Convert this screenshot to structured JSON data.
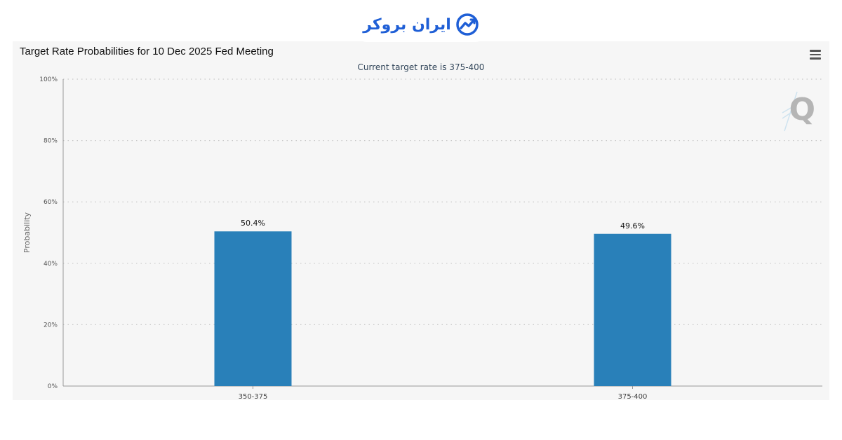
{
  "brand": {
    "name": "ایران بروکر"
  },
  "toolbar": {
    "menu_icon": "hamburger-menu-icon"
  },
  "watermark": {
    "letter": "Q"
  },
  "chart_data": {
    "type": "bar",
    "title": "Target Rate Probabilities for 10 Dec 2025 Fed Meeting",
    "subtitle": "Current target rate is 375-400",
    "ylabel": "Probability",
    "xlabel": "",
    "categories": [
      "350-375",
      "375-400"
    ],
    "values": [
      50.4,
      49.6
    ],
    "data_labels": [
      "50.4%",
      "49.6%"
    ],
    "ylim": [
      0,
      100
    ],
    "yticks": [
      0,
      20,
      40,
      60,
      80,
      100
    ],
    "ytick_labels": [
      "0%",
      "20%",
      "40%",
      "60%",
      "80%",
      "100%"
    ],
    "grid": true,
    "bar_color": "#2980b9"
  }
}
